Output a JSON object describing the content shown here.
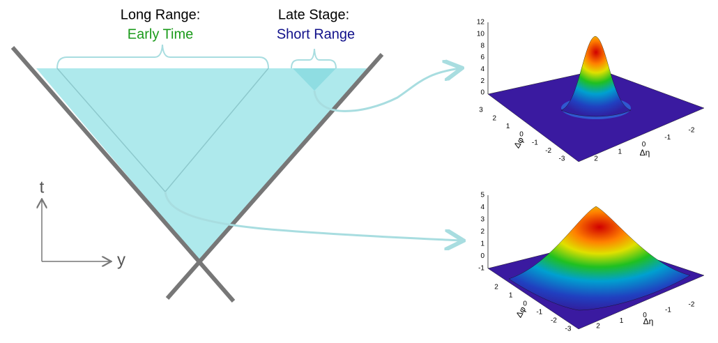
{
  "labels": {
    "long_range": "Long Range:",
    "early_time": "Early Time",
    "late_stage": "Late Stage:",
    "short_range": "Short Range",
    "t_axis": "t",
    "y_axis": "y"
  },
  "plots": [
    {
      "z_ticks": [
        "12",
        "10",
        "8",
        "6",
        "4",
        "2",
        "0"
      ],
      "phi_ticks": [
        "3",
        "2",
        "1",
        "0",
        "-1",
        "-2",
        "-3"
      ],
      "eta_ticks": [
        "2",
        "1",
        "0",
        "-1",
        "-2"
      ],
      "phi_label": "Δφ",
      "eta_label": "Δη"
    },
    {
      "z_ticks": [
        "5",
        "4",
        "3",
        "2",
        "1",
        "0",
        "-1"
      ],
      "phi_ticks": [
        "2",
        "1",
        "0",
        "-1",
        "-2",
        "-3"
      ],
      "eta_ticks": [
        "2",
        "1",
        "0",
        "-1",
        "-2"
      ],
      "phi_label": "Δφ",
      "eta_label": "Δη"
    }
  ]
}
